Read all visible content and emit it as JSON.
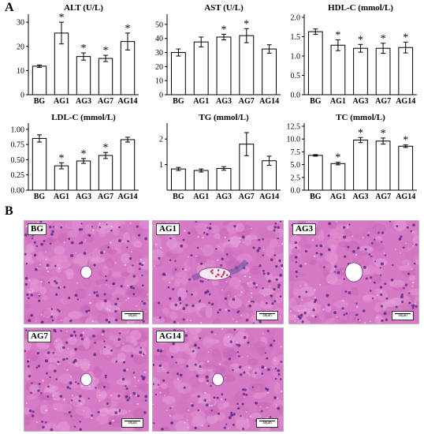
{
  "panel_labels": {
    "a": "A",
    "b": "B"
  },
  "chart_data": [
    {
      "type": "bar",
      "title": "ALT (U/L)",
      "categories": [
        "BG",
        "AG1",
        "AG3",
        "AG7",
        "AG14"
      ],
      "values": [
        11.8,
        25.5,
        15.8,
        15.0,
        22.0
      ],
      "errors": [
        0.5,
        4.5,
        1.5,
        1.3,
        3.5
      ],
      "significant": [
        false,
        true,
        true,
        true,
        true
      ],
      "ylim": [
        0,
        32
      ],
      "yticks": [
        0,
        10,
        20,
        30
      ]
    },
    {
      "type": "bar",
      "title": "AST (U/L)",
      "categories": [
        "BG",
        "AG1",
        "AG3",
        "AG7",
        "AG14"
      ],
      "values": [
        30,
        37.5,
        41,
        42,
        32.5
      ],
      "errors": [
        2.5,
        3.5,
        2,
        5,
        3
      ],
      "significant": [
        false,
        false,
        true,
        true,
        false
      ],
      "ylim": [
        0,
        55
      ],
      "yticks": [
        0,
        10,
        20,
        30,
        40,
        50
      ]
    },
    {
      "type": "bar",
      "title": "HDL-C (mmol/L)",
      "categories": [
        "BG",
        "AG1",
        "AG3",
        "AG7",
        "AG14"
      ],
      "values": [
        1.63,
        1.28,
        1.2,
        1.2,
        1.22
      ],
      "errors": [
        0.07,
        0.14,
        0.1,
        0.13,
        0.14
      ],
      "significant": [
        false,
        true,
        true,
        true,
        true
      ],
      "ylim": [
        0,
        2.0
      ],
      "yticks": [
        0.0,
        0.5,
        1.0,
        1.5,
        2.0
      ]
    },
    {
      "type": "bar",
      "title": "LDL-C (mmol/L)",
      "categories": [
        "BG",
        "AG1",
        "AG3",
        "AG7",
        "AG14"
      ],
      "values": [
        0.85,
        0.4,
        0.48,
        0.57,
        0.83
      ],
      "errors": [
        0.06,
        0.05,
        0.04,
        0.05,
        0.04
      ],
      "significant": [
        false,
        true,
        true,
        true,
        false
      ],
      "ylim": [
        0,
        1.05
      ],
      "yticks": [
        0.0,
        0.25,
        0.5,
        0.75,
        1.0
      ]
    },
    {
      "type": "bar",
      "title": "TG (mmol/L)",
      "categories": [
        "BG",
        "AG1",
        "AG3",
        "AG7",
        "AG14"
      ],
      "values": [
        0.83,
        0.77,
        0.85,
        1.8,
        1.15
      ],
      "errors": [
        0.06,
        0.06,
        0.07,
        0.45,
        0.18
      ],
      "significant": [
        false,
        false,
        false,
        false,
        false
      ],
      "ylim": [
        0,
        2.5
      ],
      "yticks": [
        1,
        2
      ]
    },
    {
      "type": "bar",
      "title": "TC (mmol/L)",
      "categories": [
        "BG",
        "AG1",
        "AG3",
        "AG7",
        "AG14"
      ],
      "values": [
        6.8,
        5.2,
        9.8,
        9.6,
        8.6
      ],
      "errors": [
        0.15,
        0.25,
        0.5,
        0.6,
        0.25
      ],
      "significant": [
        false,
        true,
        true,
        true,
        true
      ],
      "ylim": [
        0,
        12.5
      ],
      "yticks": [
        0.0,
        2.5,
        5.0,
        7.5,
        10.0,
        12.5
      ]
    }
  ],
  "ytick_labels": [
    [
      "0",
      "10",
      "20",
      "30"
    ],
    [
      "0",
      "10",
      "20",
      "30",
      "40",
      "50"
    ],
    [
      "0.0",
      "0.5",
      "1.0",
      "1.5",
      "2.0"
    ],
    [
      "0.00",
      "0.25",
      "0.50",
      "0.75",
      "1.00"
    ],
    [
      "1",
      "2"
    ],
    [
      "0.0",
      "2.5",
      "5.0",
      "7.5",
      "10.0",
      "12.5"
    ]
  ],
  "significance_marker": "*",
  "micrographs": [
    {
      "label": "BG",
      "scale": "40μm",
      "vessel": "small"
    },
    {
      "label": "AG1",
      "scale": "40μm",
      "vessel": "damaged"
    },
    {
      "label": "AG3",
      "scale": "40μm",
      "vessel": "medium"
    },
    {
      "label": "AG7",
      "scale": "40μm",
      "vessel": "small"
    },
    {
      "label": "AG14",
      "scale": "40μm",
      "vessel": "small"
    }
  ],
  "colors": {
    "bar_fill": "#ffffff",
    "bar_stroke": "#000000",
    "tissue_base": "#d77ac6",
    "nucleus": "#5a2a8a",
    "vessel": "#ffffff"
  }
}
